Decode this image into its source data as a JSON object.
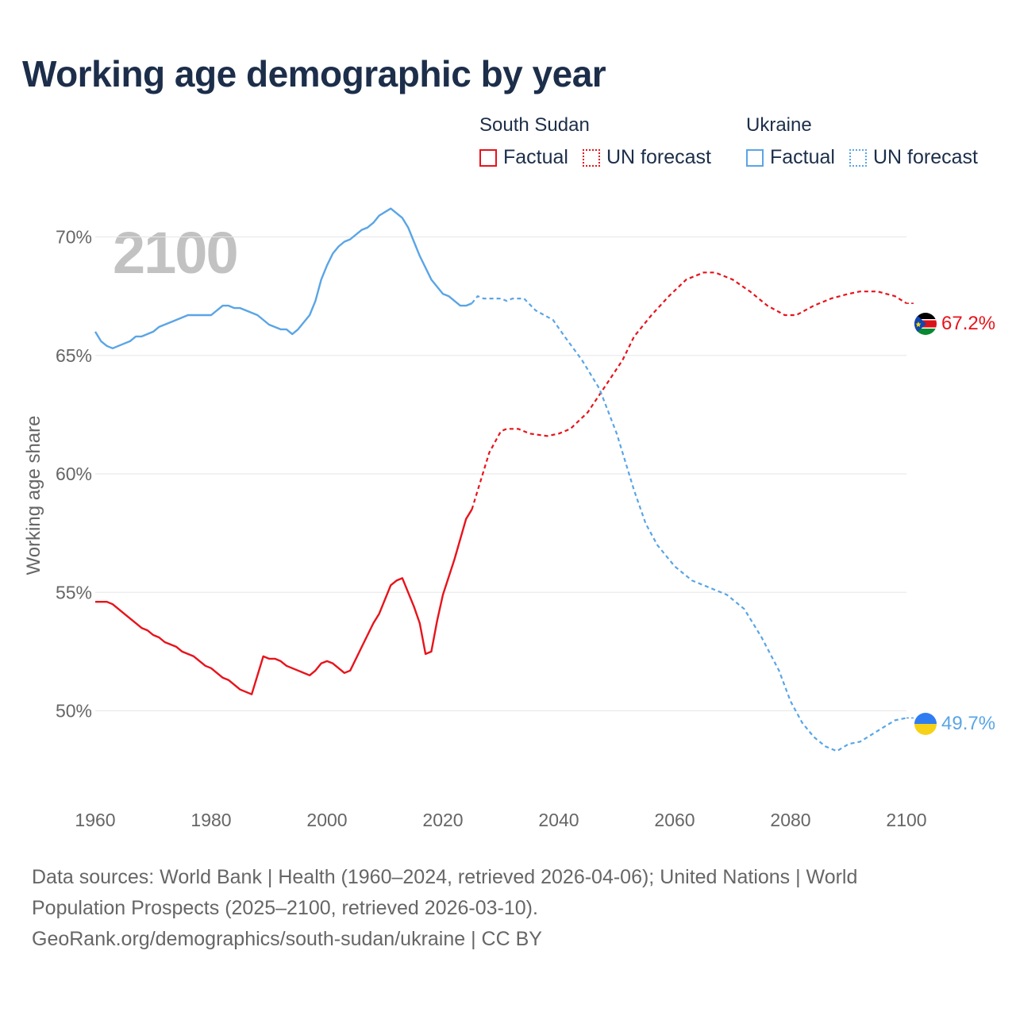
{
  "title": "Working age demographic by year",
  "legend": {
    "groups": [
      {
        "name": "South Sudan",
        "factual_label": "Factual",
        "forecast_label": "UN forecast",
        "color": "#e8131b"
      },
      {
        "name": "Ukraine",
        "factual_label": "Factual",
        "forecast_label": "UN forecast",
        "color": "#5aa5e6"
      }
    ]
  },
  "source": {
    "line1": "Data sources: World Bank | Health (1960–2024, retrieved 2026-04-06); United Nations | World",
    "line2": "Population Prospects (2025–2100, retrieved 2026-03-10).",
    "line3": "GeoRank.org/demographics/south-sudan/ukraine | CC BY"
  },
  "chart_data": {
    "type": "line",
    "title": "Working age demographic by year",
    "year_label": "2100",
    "ylabel": "Working age share",
    "xlabel": "",
    "xlim": [
      1960,
      2100
    ],
    "ylim": [
      46.3,
      73.3
    ],
    "x_ticks": [
      1960,
      1980,
      2000,
      2020,
      2040,
      2060,
      2080,
      2100
    ],
    "x_tick_labels": [
      "1960",
      "1980",
      "2000",
      "2020",
      "2040",
      "2060",
      "2080",
      "2100"
    ],
    "y_ticks": [
      50,
      55,
      60,
      65,
      70
    ],
    "y_tick_labels": [
      "50%",
      "55%",
      "60%",
      "65%",
      "70%"
    ],
    "grid": true,
    "forecast_start": 2025,
    "series": [
      {
        "name": "South Sudan",
        "color": "#e8131b",
        "end_label": "67.2%",
        "points": [
          [
            1960,
            54.6
          ],
          [
            1962,
            54.6
          ],
          [
            1963,
            54.5
          ],
          [
            1965,
            54.1
          ],
          [
            1967,
            53.7
          ],
          [
            1968,
            53.5
          ],
          [
            1969,
            53.4
          ],
          [
            1970,
            53.2
          ],
          [
            1971,
            53.1
          ],
          [
            1972,
            52.9
          ],
          [
            1974,
            52.7
          ],
          [
            1975,
            52.5
          ],
          [
            1977,
            52.3
          ],
          [
            1979,
            51.9
          ],
          [
            1980,
            51.8
          ],
          [
            1982,
            51.4
          ],
          [
            1983,
            51.3
          ],
          [
            1985,
            50.9
          ],
          [
            1987,
            50.7
          ],
          [
            1989,
            52.3
          ],
          [
            1990,
            52.2
          ],
          [
            1991,
            52.2
          ],
          [
            1992,
            52.1
          ],
          [
            1993,
            51.9
          ],
          [
            1995,
            51.7
          ],
          [
            1997,
            51.5
          ],
          [
            1998,
            51.7
          ],
          [
            1999,
            52.0
          ],
          [
            2000,
            52.1
          ],
          [
            2001,
            52.0
          ],
          [
            2003,
            51.6
          ],
          [
            2004,
            51.7
          ],
          [
            2006,
            52.7
          ],
          [
            2008,
            53.7
          ],
          [
            2009,
            54.1
          ],
          [
            2011,
            55.3
          ],
          [
            2012,
            55.5
          ],
          [
            2013,
            55.6
          ],
          [
            2015,
            54.4
          ],
          [
            2016,
            53.7
          ],
          [
            2017,
            52.4
          ],
          [
            2018,
            52.5
          ],
          [
            2019,
            53.8
          ],
          [
            2020,
            54.9
          ],
          [
            2022,
            56.4
          ],
          [
            2024,
            58.1
          ],
          [
            2025,
            58.5
          ],
          [
            2026,
            59.3
          ],
          [
            2028,
            60.9
          ],
          [
            2030,
            61.8
          ],
          [
            2031,
            61.9
          ],
          [
            2033,
            61.9
          ],
          [
            2035,
            61.7
          ],
          [
            2038,
            61.6
          ],
          [
            2040,
            61.7
          ],
          [
            2042,
            61.9
          ],
          [
            2045,
            62.6
          ],
          [
            2048,
            63.7
          ],
          [
            2051,
            64.8
          ],
          [
            2053,
            65.8
          ],
          [
            2056,
            66.7
          ],
          [
            2059,
            67.5
          ],
          [
            2062,
            68.2
          ],
          [
            2065,
            68.5
          ],
          [
            2067,
            68.5
          ],
          [
            2070,
            68.2
          ],
          [
            2073,
            67.7
          ],
          [
            2076,
            67.1
          ],
          [
            2079,
            66.7
          ],
          [
            2081,
            66.7
          ],
          [
            2084,
            67.1
          ],
          [
            2087,
            67.4
          ],
          [
            2090,
            67.6
          ],
          [
            2092,
            67.7
          ],
          [
            2095,
            67.7
          ],
          [
            2098,
            67.5
          ],
          [
            2100,
            67.2
          ]
        ]
      },
      {
        "name": "Ukraine",
        "color": "#5aa5e6",
        "end_label": "49.7%",
        "points": [
          [
            1960,
            66.0
          ],
          [
            1961,
            65.6
          ],
          [
            1962,
            65.4
          ],
          [
            1963,
            65.3
          ],
          [
            1965,
            65.5
          ],
          [
            1966,
            65.6
          ],
          [
            1967,
            65.8
          ],
          [
            1968,
            65.8
          ],
          [
            1970,
            66.0
          ],
          [
            1971,
            66.2
          ],
          [
            1973,
            66.4
          ],
          [
            1975,
            66.6
          ],
          [
            1976,
            66.7
          ],
          [
            1979,
            66.7
          ],
          [
            1980,
            66.7
          ],
          [
            1982,
            67.1
          ],
          [
            1983,
            67.1
          ],
          [
            1984,
            67.0
          ],
          [
            1985,
            67.0
          ],
          [
            1988,
            66.7
          ],
          [
            1990,
            66.3
          ],
          [
            1992,
            66.1
          ],
          [
            1993,
            66.1
          ],
          [
            1994,
            65.9
          ],
          [
            1995,
            66.1
          ],
          [
            1997,
            66.7
          ],
          [
            1998,
            67.3
          ],
          [
            1999,
            68.2
          ],
          [
            2000,
            68.8
          ],
          [
            2001,
            69.3
          ],
          [
            2002,
            69.6
          ],
          [
            2003,
            69.8
          ],
          [
            2004,
            69.9
          ],
          [
            2006,
            70.3
          ],
          [
            2007,
            70.4
          ],
          [
            2008,
            70.6
          ],
          [
            2009,
            70.9
          ],
          [
            2011,
            71.2
          ],
          [
            2013,
            70.8
          ],
          [
            2014,
            70.4
          ],
          [
            2015,
            69.8
          ],
          [
            2016,
            69.2
          ],
          [
            2018,
            68.2
          ],
          [
            2020,
            67.6
          ],
          [
            2021,
            67.5
          ],
          [
            2023,
            67.1
          ],
          [
            2024,
            67.1
          ],
          [
            2025,
            67.2
          ],
          [
            2026,
            67.5
          ],
          [
            2027,
            67.4
          ],
          [
            2030,
            67.4
          ],
          [
            2031,
            67.3
          ],
          [
            2032,
            67.4
          ],
          [
            2034,
            67.4
          ],
          [
            2036,
            66.9
          ],
          [
            2039,
            66.5
          ],
          [
            2041,
            65.8
          ],
          [
            2044,
            64.8
          ],
          [
            2047,
            63.6
          ],
          [
            2050,
            61.7
          ],
          [
            2053,
            59.3
          ],
          [
            2055,
            57.9
          ],
          [
            2057,
            57.0
          ],
          [
            2060,
            56.1
          ],
          [
            2063,
            55.5
          ],
          [
            2066,
            55.2
          ],
          [
            2069,
            54.9
          ],
          [
            2072,
            54.3
          ],
          [
            2075,
            53.1
          ],
          [
            2078,
            51.7
          ],
          [
            2080,
            50.4
          ],
          [
            2082,
            49.5
          ],
          [
            2084,
            48.9
          ],
          [
            2086,
            48.5
          ],
          [
            2088,
            48.3
          ],
          [
            2090,
            48.6
          ],
          [
            2092,
            48.7
          ],
          [
            2094,
            49.0
          ],
          [
            2096,
            49.3
          ],
          [
            2098,
            49.6
          ],
          [
            2100,
            49.7
          ]
        ]
      }
    ]
  },
  "colors": {
    "title": "#1c2e4a",
    "grid": "#e6e6e6",
    "tick": "#666666",
    "year_watermark": "#c2c2c2"
  }
}
